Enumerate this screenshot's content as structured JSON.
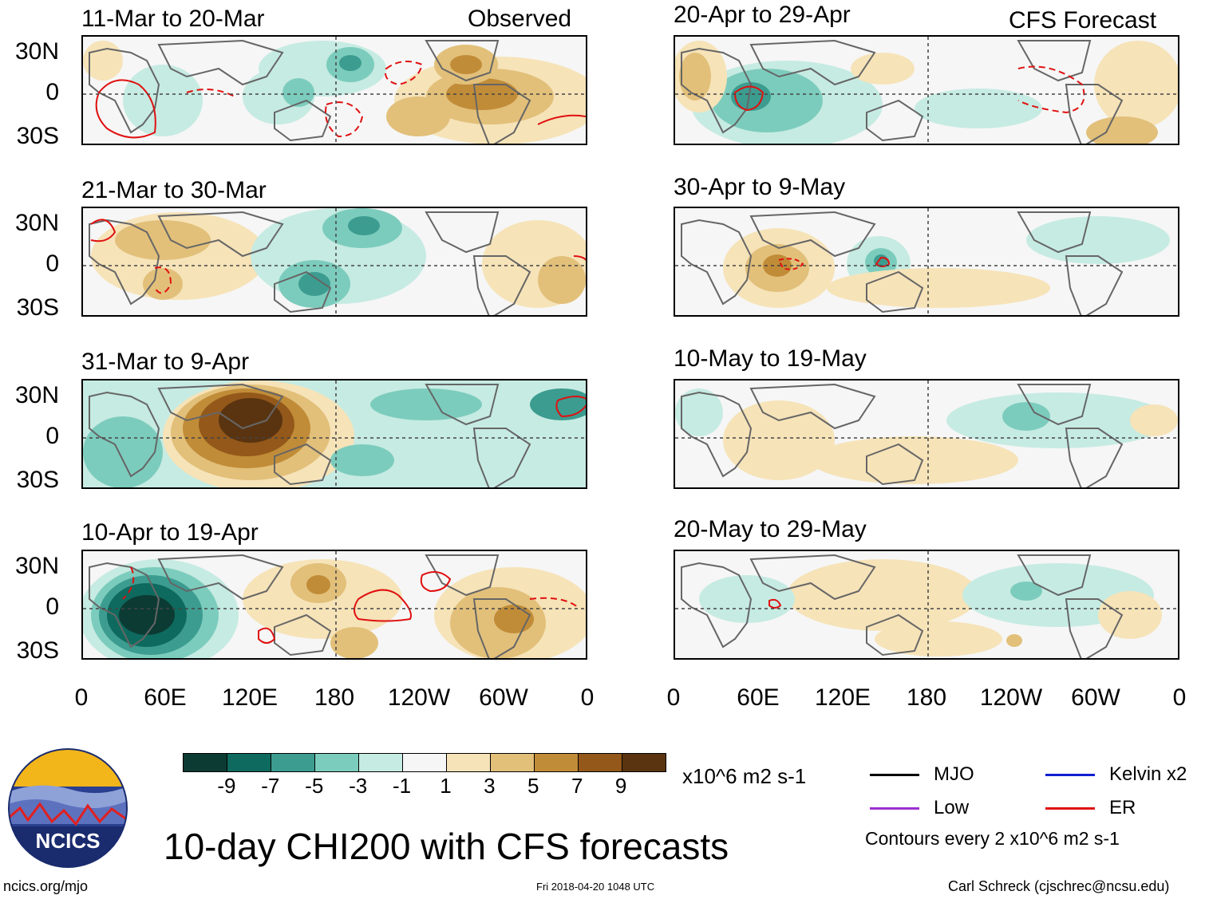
{
  "panels": [
    {
      "title": "11-Mar to 20-Mar",
      "tag": "Observed"
    },
    {
      "title": "21-Mar to 30-Mar",
      "tag": ""
    },
    {
      "title": "31-Mar to 9-Apr",
      "tag": ""
    },
    {
      "title": "10-Apr to 19-Apr",
      "tag": ""
    },
    {
      "title": "20-Apr to 29-Apr",
      "tag": "CFS Forecast"
    },
    {
      "title": "30-Apr to 9-May",
      "tag": ""
    },
    {
      "title": "10-May to 19-May",
      "tag": ""
    },
    {
      "title": "20-May to 29-May",
      "tag": ""
    }
  ],
  "lat_labels": [
    "30N",
    "0",
    "30S"
  ],
  "lon_labels": [
    "0",
    "60E",
    "120E",
    "180",
    "120W",
    "60W",
    "0"
  ],
  "colorbar": {
    "colors": [
      "#0c3b34",
      "#0e6a5e",
      "#3c9c90",
      "#7cccbd",
      "#c6ebe2",
      "#f6f6f6",
      "#f6e3b8",
      "#e2c07a",
      "#c18c38",
      "#93581a",
      "#5a3410"
    ],
    "labels": [
      "-9",
      "-7",
      "-5",
      "-3",
      "-1",
      "1",
      "3",
      "5",
      "7",
      "9"
    ],
    "units": "x10^6 m2 s-1"
  },
  "legend": {
    "items": [
      {
        "label": "MJO",
        "color": "#000000"
      },
      {
        "label": "Kelvin x2",
        "color": "#1020d0"
      },
      {
        "label": "Low",
        "color": "#9b30d0"
      },
      {
        "label": "ER",
        "color": "#e01010"
      }
    ],
    "note": "Contours every 2 x10^6 m2 s-1"
  },
  "main_title": "10-day CHI200 with CFS forecasts",
  "logo_text": "NCICS",
  "footer": {
    "left": "ncics.org/mjo",
    "center": "Fri 2018-04-20 1048 UTC",
    "right": "Carl Schreck (cjschrec@ncsu.edu)"
  }
}
